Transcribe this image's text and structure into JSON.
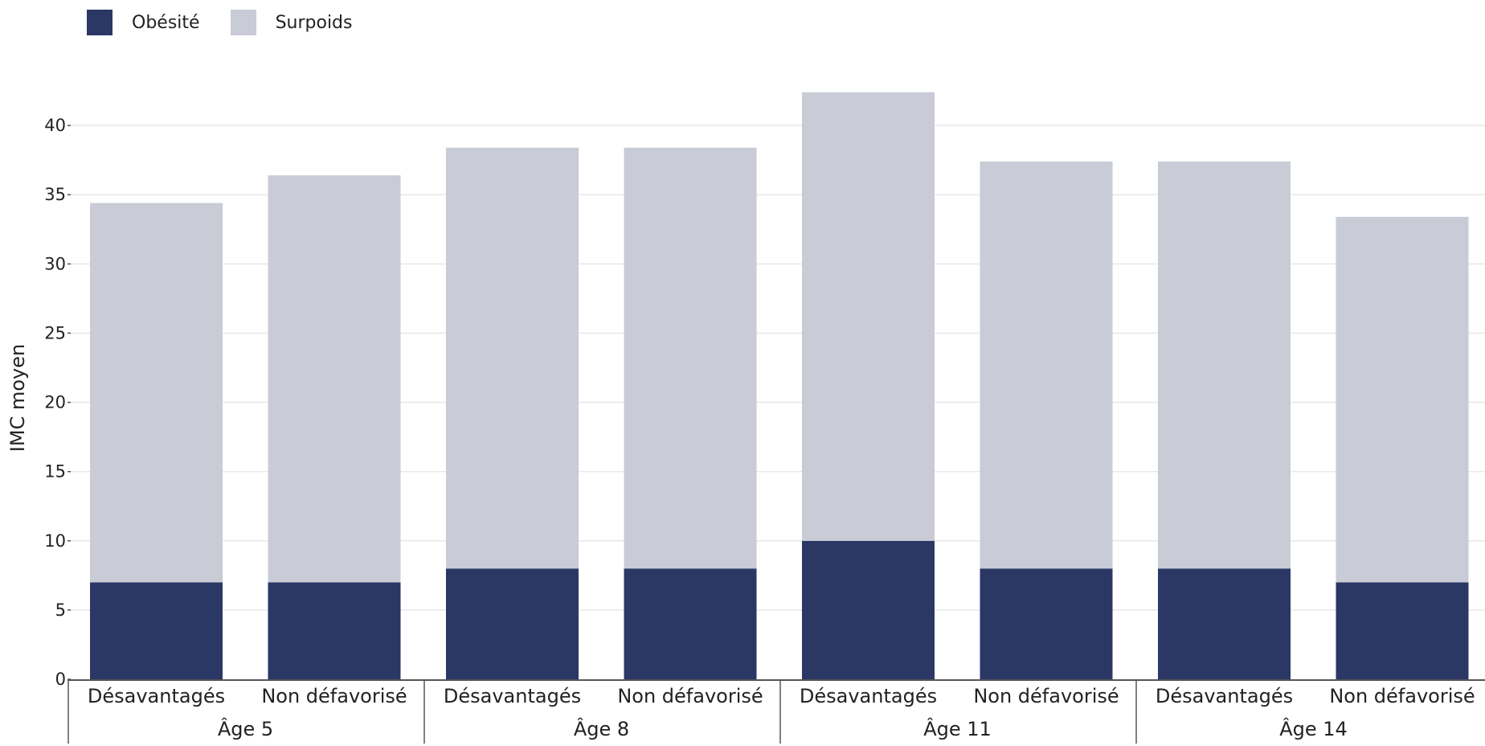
{
  "chart_data": {
    "type": "bar",
    "stacked": true,
    "groups": [
      "Âge 5",
      "Âge 8",
      "Âge 11",
      "Âge 14"
    ],
    "categories": [
      "Désavantagés",
      "Non défavorisé",
      "Désavantagés",
      "Non défavorisé",
      "Désavantagés",
      "Non défavorisé",
      "Désavantagés",
      "Non défavorisé"
    ],
    "series": [
      {
        "name": "Obésité",
        "color": "#2b3764",
        "values": [
          7,
          7,
          8,
          8,
          10,
          8,
          8,
          7
        ]
      },
      {
        "name": "Surpoids",
        "color": "#c9cbd7",
        "values": [
          27.4,
          29.4,
          30.4,
          30.4,
          32.4,
          29.4,
          29.4,
          26.4
        ]
      }
    ],
    "ylabel": "IMC moyen",
    "xlabel": "",
    "ylim": [
      0,
      45
    ],
    "yticks": [
      0,
      5,
      10,
      15,
      20,
      25,
      30,
      35,
      40
    ],
    "grid": true,
    "legend_position": "top-left"
  }
}
